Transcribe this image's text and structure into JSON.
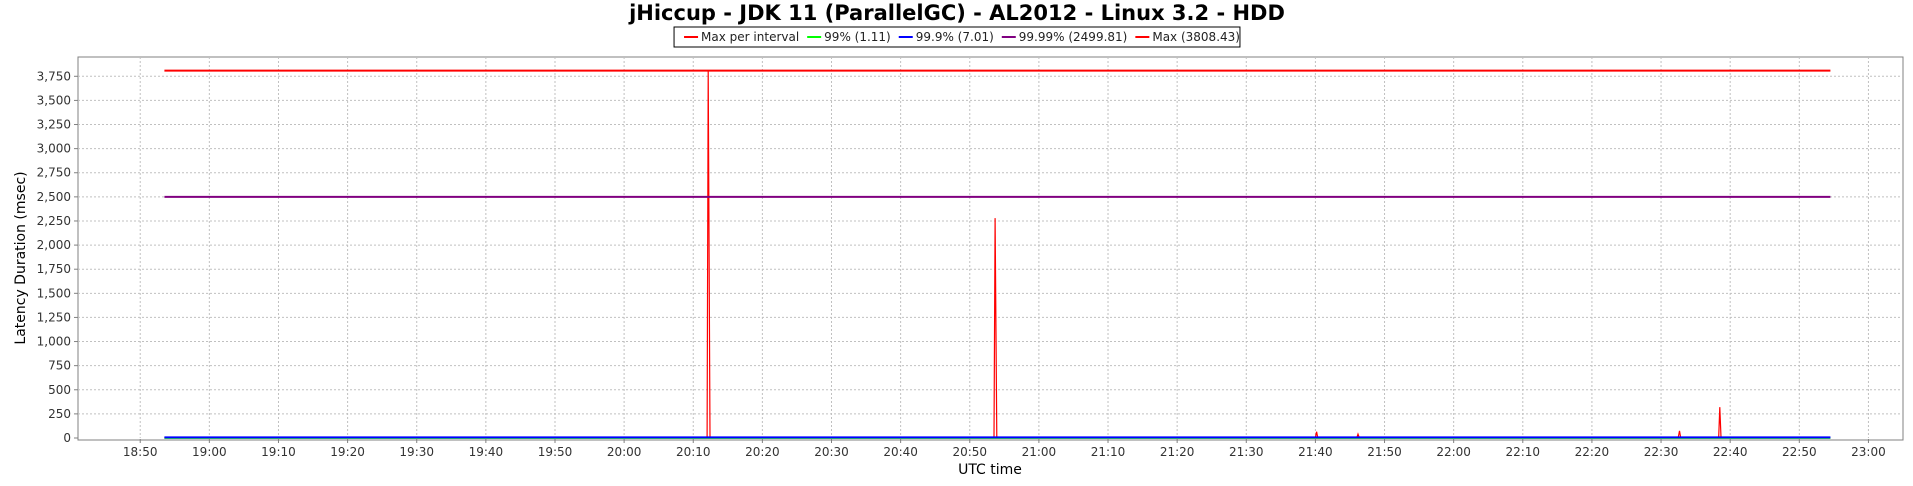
{
  "chart_data": {
    "type": "line",
    "title": "jHiccup - JDK 11 (ParallelGC) - AL2012 - Linux 3.2 - HDD",
    "xlabel": "UTC time",
    "ylabel": "Latency Duration (msec)",
    "ylim": [
      0,
      3950
    ],
    "y_ticks": [
      {
        "value": 0,
        "label": "0"
      },
      {
        "value": 250,
        "label": "250"
      },
      {
        "value": 500,
        "label": "500"
      },
      {
        "value": 750,
        "label": "750"
      },
      {
        "value": 1000,
        "label": "1,000"
      },
      {
        "value": 1250,
        "label": "1,250"
      },
      {
        "value": 1500,
        "label": "1,500"
      },
      {
        "value": 1750,
        "label": "1,750"
      },
      {
        "value": 2000,
        "label": "2,000"
      },
      {
        "value": 2250,
        "label": "2,250"
      },
      {
        "value": 2500,
        "label": "2,500"
      },
      {
        "value": 2750,
        "label": "2,750"
      },
      {
        "value": 3000,
        "label": "3,000"
      },
      {
        "value": 3250,
        "label": "3,250"
      },
      {
        "value": 3500,
        "label": "3,500"
      },
      {
        "value": 3750,
        "label": "3,750"
      }
    ],
    "xlim": [
      "18:41",
      "23:05"
    ],
    "x_ticks": [
      "18:50",
      "19:00",
      "19:10",
      "19:20",
      "19:30",
      "19:40",
      "19:50",
      "20:00",
      "20:10",
      "20:20",
      "20:30",
      "20:40",
      "20:50",
      "21:00",
      "21:10",
      "21:20",
      "21:30",
      "21:40",
      "21:50",
      "22:00",
      "22:10",
      "22:20",
      "22:30",
      "22:40",
      "22:50",
      "23:00"
    ],
    "grid": true,
    "legend_position": "top-center",
    "series": [
      {
        "name": "Max per interval",
        "color": "#ff0000",
        "points": [
          [
            "18:53:30",
            2
          ],
          [
            "20:12:00",
            3
          ],
          [
            "20:12:10",
            3808.43
          ],
          [
            "20:12:25",
            3
          ],
          [
            "20:53:30",
            3
          ],
          [
            "20:53:40",
            2280
          ],
          [
            "20:53:55",
            3
          ],
          [
            "21:40:00",
            5
          ],
          [
            "21:40:10",
            65
          ],
          [
            "21:40:20",
            5
          ],
          [
            "21:46:00",
            6
          ],
          [
            "21:46:10",
            40
          ],
          [
            "21:46:20",
            6
          ],
          [
            "22:32:30",
            8
          ],
          [
            "22:32:40",
            75
          ],
          [
            "22:32:50",
            8
          ],
          [
            "22:38:20",
            10
          ],
          [
            "22:38:30",
            320
          ],
          [
            "22:38:40",
            10
          ],
          [
            "22:54:30",
            5
          ]
        ]
      },
      {
        "name": "99%",
        "value": 1.11,
        "label": "99% (1.11)",
        "color": "#00ff00",
        "x_start": "18:53:30",
        "x_end": "22:54:30"
      },
      {
        "name": "99.9%",
        "value": 7.01,
        "label": "99.9% (7.01)",
        "color": "#0000ff",
        "x_start": "18:53:30",
        "x_end": "22:54:30"
      },
      {
        "name": "99.99%",
        "value": 2499.81,
        "label": "99.99% (2499.81)",
        "color": "#800080",
        "x_start": "18:53:30",
        "x_end": "22:54:30"
      },
      {
        "name": "Max",
        "value": 3808.43,
        "label": "Max (3808.43)",
        "color": "#ff0000",
        "x_start": "18:53:30",
        "x_end": "22:54:30"
      }
    ]
  }
}
